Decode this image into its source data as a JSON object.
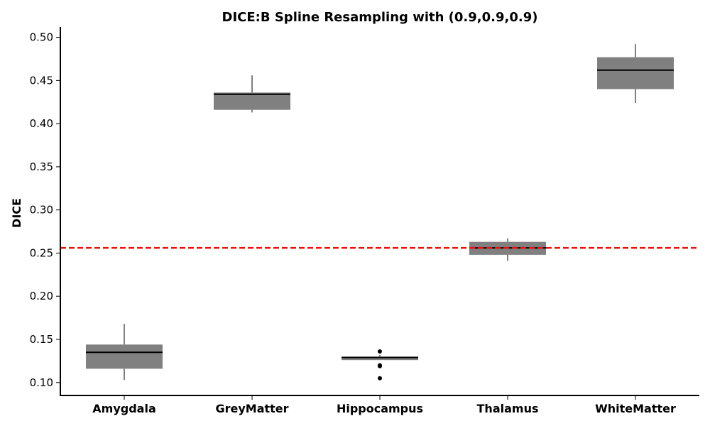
{
  "chart_data": {
    "type": "box",
    "title": "DICE:B Spline Resampling with (0.9,0.9,0.9)",
    "xlabel": "",
    "ylabel": "DICE",
    "ylim": [
      0.085,
      0.512
    ],
    "yticks": [
      0.1,
      0.15,
      0.2,
      0.25,
      0.3,
      0.35,
      0.4,
      0.45,
      0.5
    ],
    "ytick_labels": [
      "0.10",
      "0.15",
      "0.20",
      "0.25",
      "0.30",
      "0.35",
      "0.40",
      "0.45",
      "0.50"
    ],
    "categories": [
      "Amygdala",
      "GreyMatter",
      "Hippocampus",
      "Thalamus",
      "WhiteMatter"
    ],
    "boxes": [
      {
        "category": "Amygdala",
        "whisker_low": 0.103,
        "q1": 0.116,
        "median": 0.135,
        "q3": 0.144,
        "whisker_high": 0.168,
        "outliers": []
      },
      {
        "category": "GreyMatter",
        "whisker_low": 0.413,
        "q1": 0.416,
        "median": 0.434,
        "q3": 0.436,
        "whisker_high": 0.456,
        "outliers": []
      },
      {
        "category": "Hippocampus",
        "whisker_low": 0.126,
        "q1": 0.126,
        "median": 0.129,
        "q3": 0.13,
        "whisker_high": 0.132,
        "outliers": [
          0.136,
          0.12,
          0.119,
          0.105
        ]
      },
      {
        "category": "Thalamus",
        "whisker_low": 0.241,
        "q1": 0.248,
        "median": 0.256,
        "q3": 0.263,
        "whisker_high": 0.267,
        "outliers": []
      },
      {
        "category": "WhiteMatter",
        "whisker_low": 0.424,
        "q1": 0.44,
        "median": 0.462,
        "q3": 0.477,
        "whisker_high": 0.492,
        "outliers": []
      }
    ],
    "reference_line": {
      "value": 0.256,
      "color": "#e8120c",
      "style": "dashed"
    },
    "box_color": "#808080",
    "grid": false
  }
}
